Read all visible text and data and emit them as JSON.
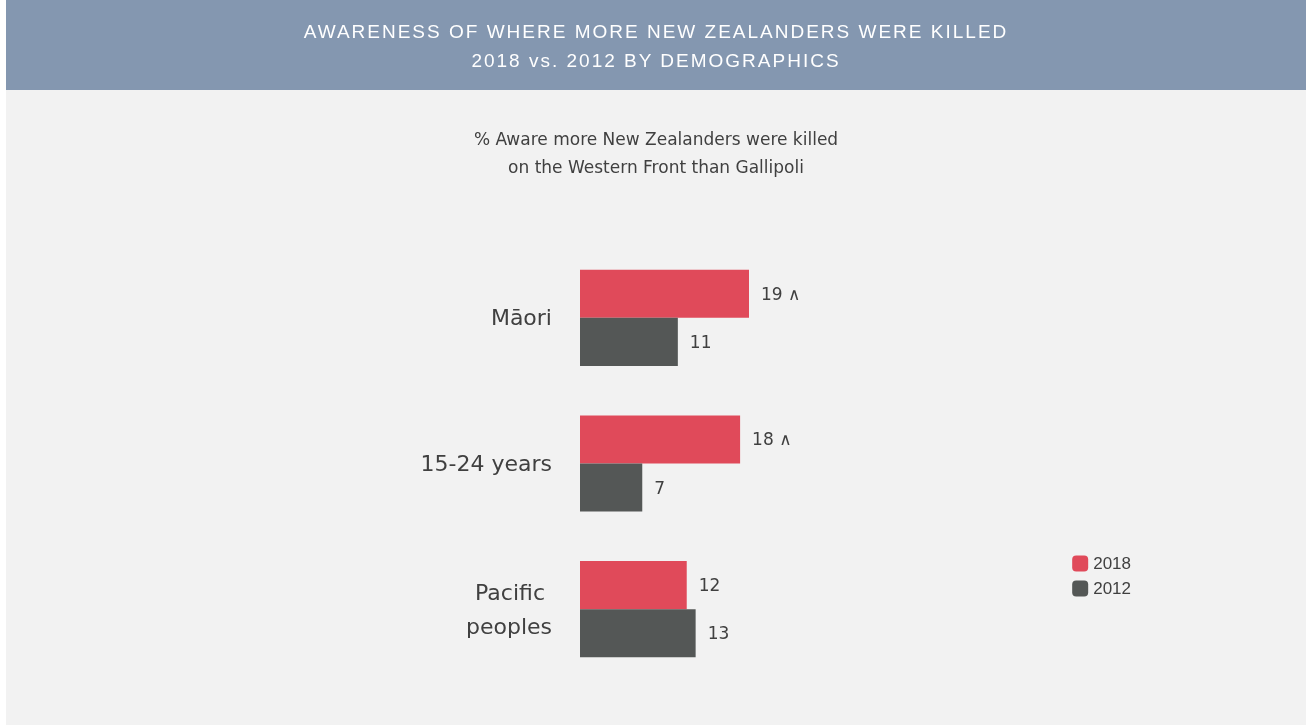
{
  "chart_data": {
    "type": "bar",
    "orientation": "horizontal",
    "title": "AWARENESS OF WHERE MORE NEW ZEALANDERS WERE KILLED",
    "subtitle": "2018 vs. 2012 BY DEMOGRAPHICS",
    "annotations": [
      "% Aware more New Zealanders were killed\non the Western Front than Gallipoli"
    ],
    "categories": [
      "Māori",
      "15-24 years",
      "Pacific peoples"
    ],
    "series": [
      {
        "name": "2018",
        "color": "#e04a5a",
        "values": [
          19,
          18,
          12
        ],
        "value_labels": [
          "19 ∧",
          "18 ∧",
          "12"
        ]
      },
      {
        "name": "2012",
        "color": "#545756",
        "values": [
          11,
          7,
          13
        ],
        "value_labels": [
          "11",
          "7",
          "13"
        ]
      }
    ],
    "legend": "right"
  }
}
